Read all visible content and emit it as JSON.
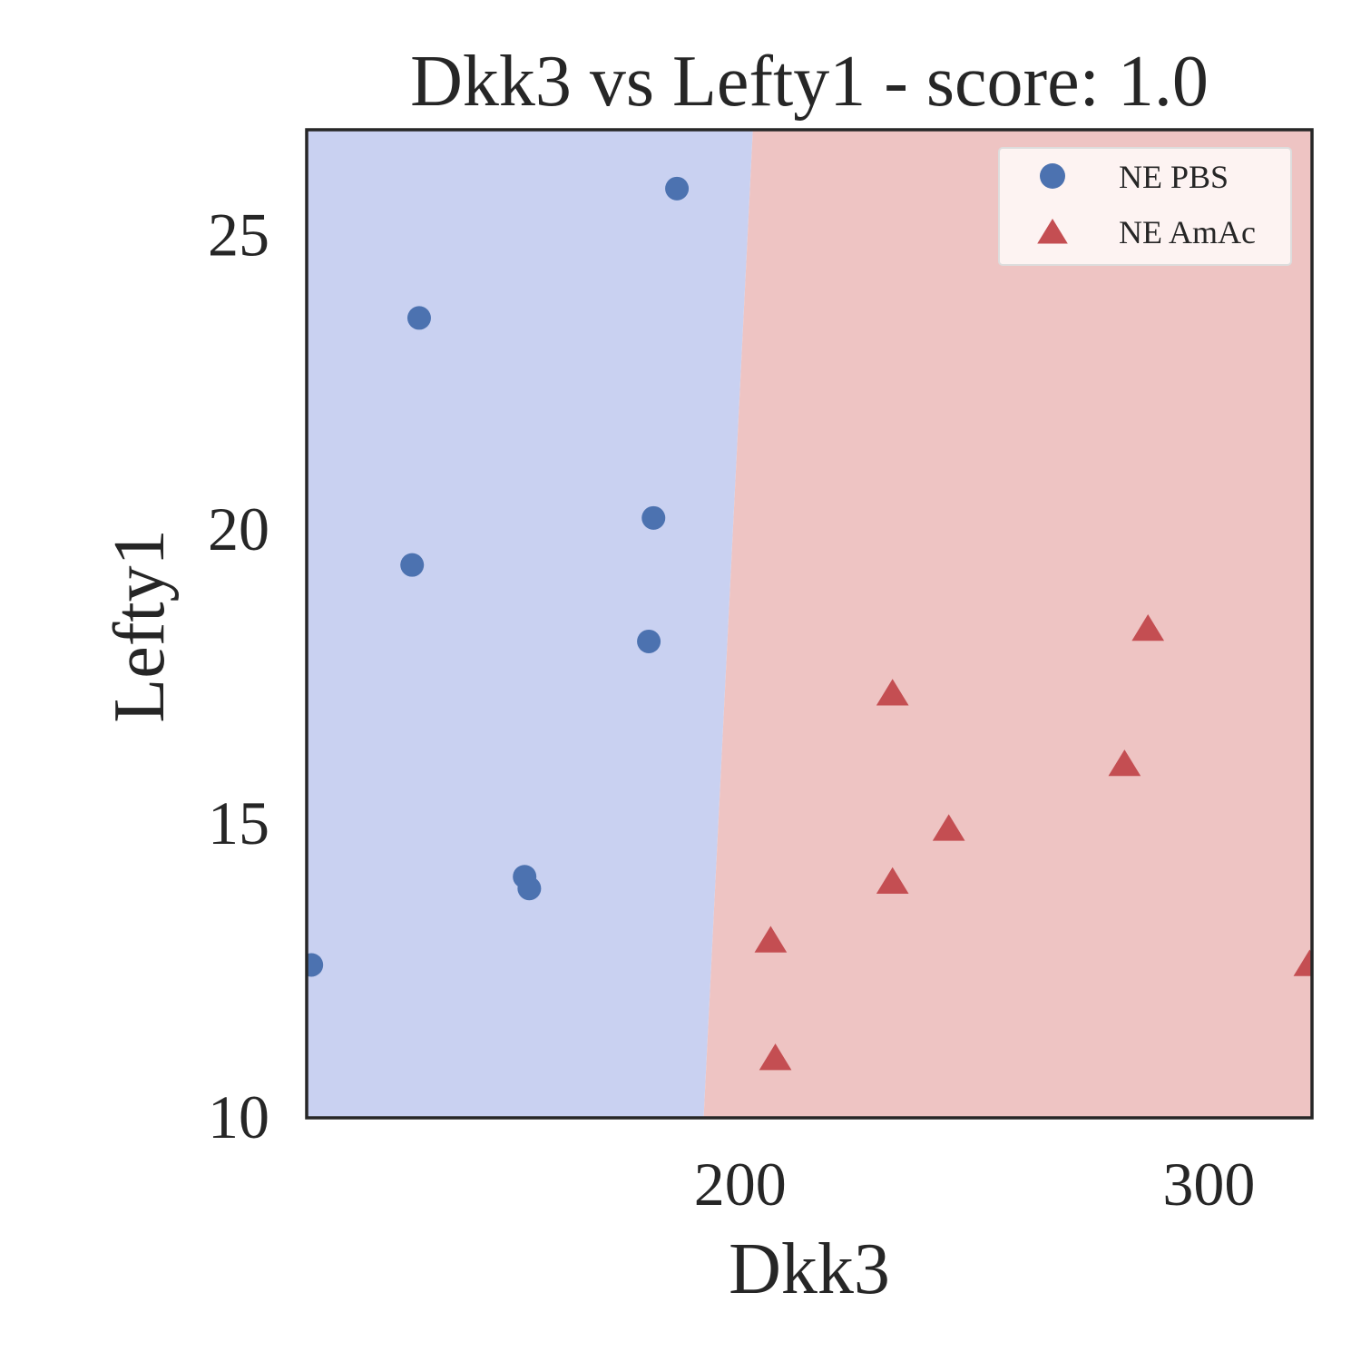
{
  "chart_data": {
    "type": "scatter",
    "title": "Dkk3 vs Lefty1 - score: 1.0",
    "xlabel": "Dkk3",
    "ylabel": "Lefty1",
    "xlim": [
      107.5,
      322
    ],
    "ylim": [
      10,
      26.8
    ],
    "xticks": [
      200,
      300
    ],
    "yticks": [
      10,
      15,
      20,
      25
    ],
    "grid": false,
    "legend_position": "top-right",
    "decision_boundary": {
      "x_at_ylim_low": 192.2,
      "x_at_ylim_high": 202.7
    },
    "region_colors": {
      "left": "#c9d1f1",
      "right": "#eec4c3"
    },
    "series": [
      {
        "name": "NE PBS",
        "marker": "circle",
        "color": "#4c72b0",
        "points": [
          [
            108.5,
            12.6
          ],
          [
            131.5,
            23.6
          ],
          [
            130,
            19.4
          ],
          [
            154,
            14.1
          ],
          [
            155,
            13.9
          ],
          [
            181.5,
            20.2
          ],
          [
            180.5,
            18.1
          ],
          [
            186.5,
            25.8
          ]
        ]
      },
      {
        "name": "NE AmAc",
        "marker": "triangle",
        "color": "#c44e52",
        "points": [
          [
            206.5,
            13.0
          ],
          [
            207.5,
            11.0
          ],
          [
            232.5,
            14.0
          ],
          [
            232.5,
            17.2
          ],
          [
            244.5,
            14.9
          ],
          [
            282,
            16.0
          ],
          [
            287,
            18.3
          ],
          [
            321.5,
            12.6
          ]
        ]
      }
    ]
  }
}
